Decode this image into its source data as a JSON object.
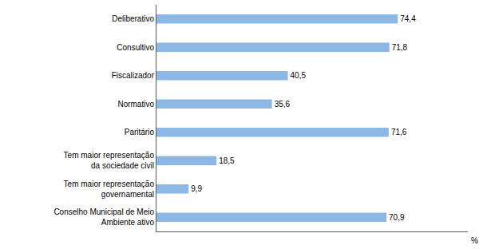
{
  "chart_data": {
    "type": "bar",
    "orientation": "horizontal",
    "categories": [
      "Deliberativo",
      "Consultivo",
      "Fiscalizador",
      "Normativo",
      "Paritário",
      "Tem maior representação\nda sociedade civil",
      "Tem maior representação\ngovernamental",
      "Conselho Municipal de Meio\nAmbiente ativo"
    ],
    "values": [
      74.4,
      71.8,
      40.5,
      35.6,
      71.6,
      18.5,
      9.9,
      70.9
    ],
    "value_labels": [
      "74,4",
      "71,8",
      "40,5",
      "35,6",
      "71,6",
      "18,5",
      "9,9",
      "70,9"
    ],
    "data_labels": true,
    "color": "#8db8e6",
    "xlabel": "%",
    "xlim": [
      0,
      96
    ],
    "xticks": [],
    "tick_labels": "y",
    "grid": false
  }
}
